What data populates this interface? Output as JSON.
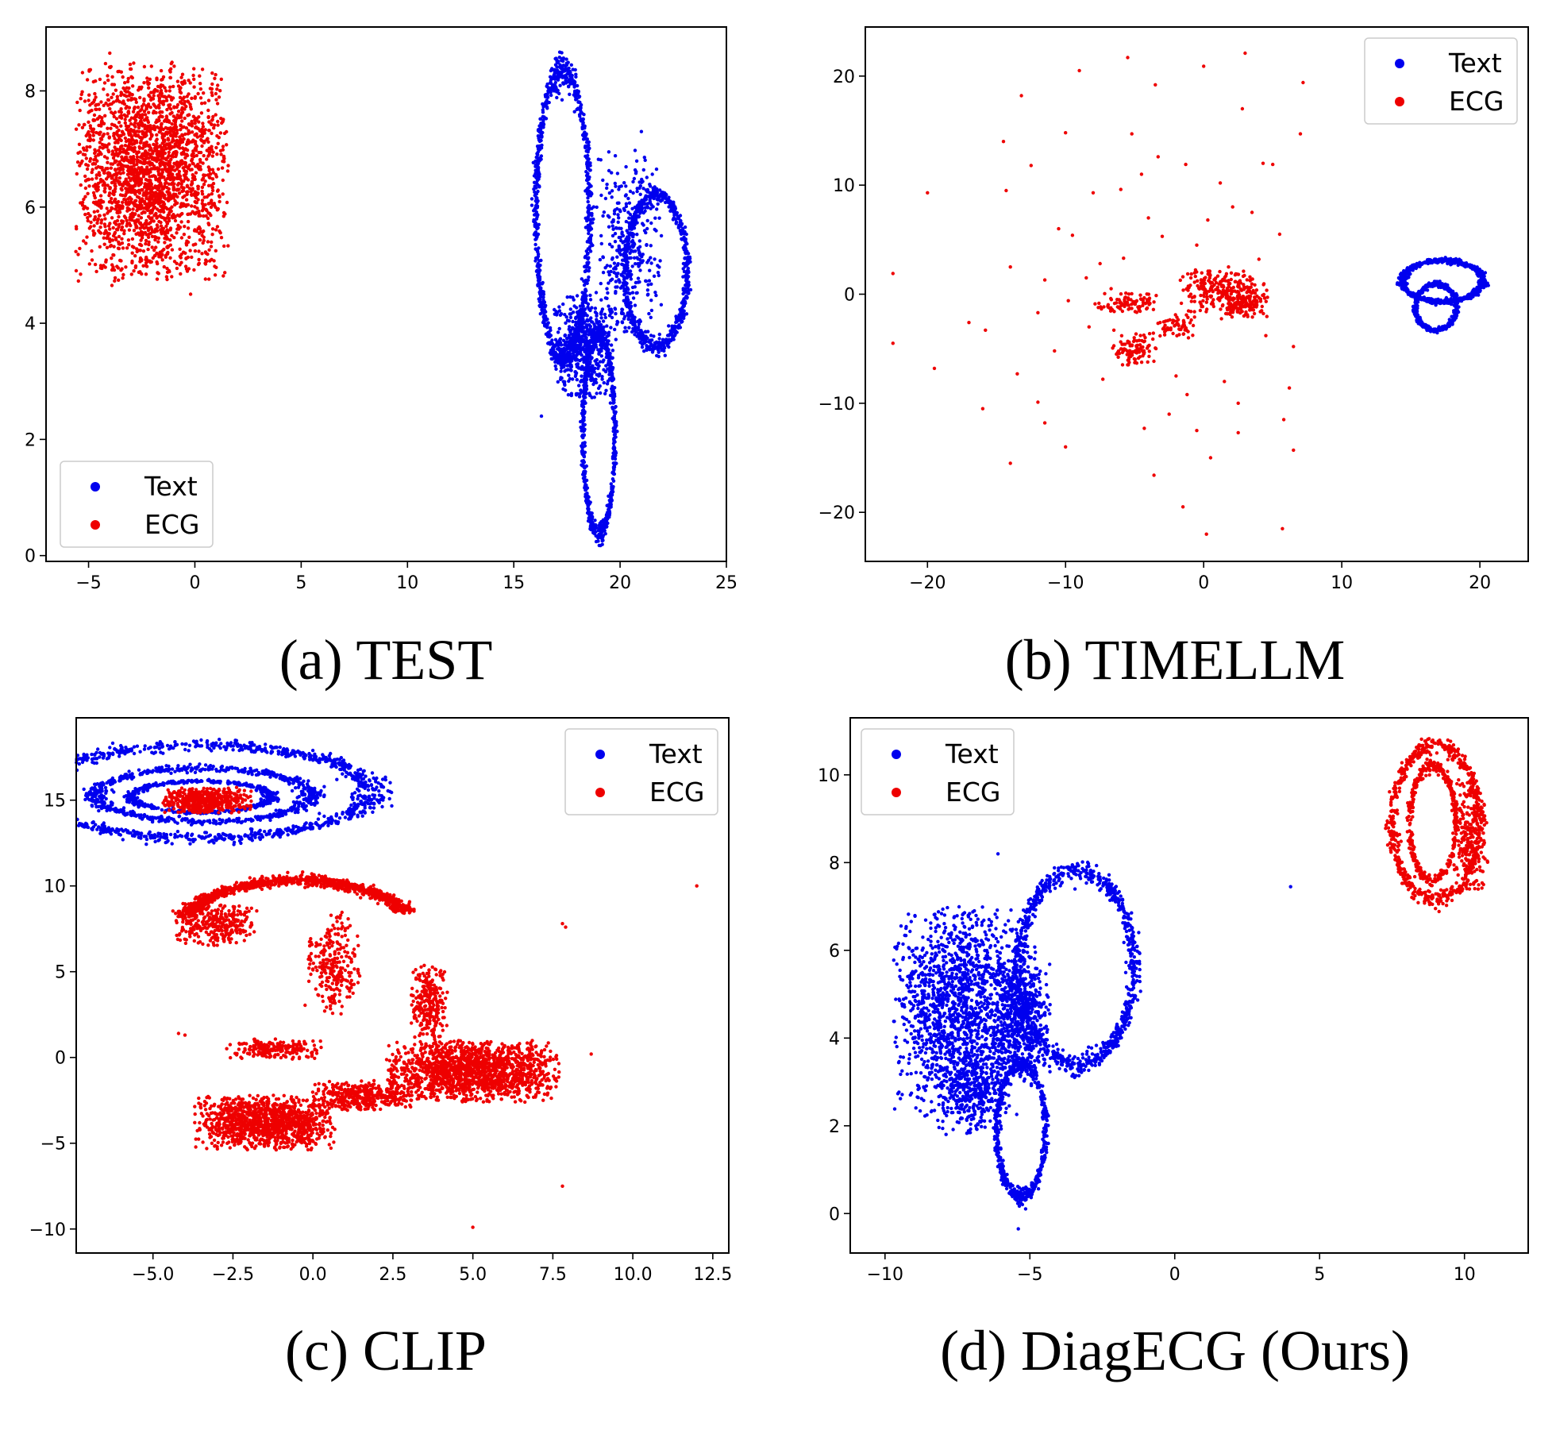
{
  "colors": {
    "text_series": "#0000ee",
    "ecg_series": "#ee0000",
    "axes": "#000000",
    "legend_border": "#cccccc"
  },
  "chart_data": [
    {
      "id": "a",
      "type": "scatter",
      "caption": "(a) TEST",
      "xlim": [
        -7,
        25
      ],
      "ylim": [
        -0.1,
        9.1
      ],
      "xticks": [
        -5,
        0,
        5,
        10,
        15,
        20,
        25
      ],
      "xtick_labels": [
        "−5",
        "0",
        "5",
        "10",
        "15",
        "20",
        "25"
      ],
      "yticks": [
        0,
        2,
        4,
        6,
        8
      ],
      "ytick_labels": [
        "0",
        "2",
        "4",
        "6",
        "8"
      ],
      "grid": false,
      "legend": {
        "position": "lower-left",
        "entries": [
          "Text",
          "ECG"
        ]
      },
      "series": [
        {
          "name": "ECG",
          "color": "#ee0000",
          "clusters": [
            {
              "shape": "blob",
              "cx": -2.0,
              "cy": 6.6,
              "rx": 3.6,
              "ry": 1.9,
              "n": 2300
            }
          ],
          "points": [
            [
              -4.0,
              8.65
            ],
            [
              -3.9,
              4.65
            ],
            [
              -0.2,
              4.5
            ]
          ]
        },
        {
          "name": "Text",
          "color": "#0000ee",
          "clusters": [
            {
              "shape": "ring",
              "cx": 17.3,
              "cy": 5.9,
              "rx": 1.25,
              "ry": 2.45,
              "n": 900
            },
            {
              "shape": "ring",
              "cx": 21.7,
              "cy": 4.9,
              "rx": 1.45,
              "ry": 1.3,
              "n": 650
            },
            {
              "shape": "ring",
              "cx": 19.0,
              "cy": 2.1,
              "rx": 0.75,
              "ry": 1.7,
              "n": 650
            },
            {
              "shape": "blob",
              "cx": 18.3,
              "cy": 3.6,
              "rx": 1.4,
              "ry": 0.9,
              "n": 500
            },
            {
              "shape": "blob",
              "cx": 20.4,
              "cy": 5.3,
              "rx": 1.6,
              "ry": 1.7,
              "n": 350
            }
          ],
          "points": [
            [
              16.3,
              2.4
            ],
            [
              19.0,
              0.35
            ],
            [
              21.0,
              7.3
            ]
          ]
        }
      ]
    },
    {
      "id": "b",
      "type": "scatter",
      "caption": "(b) TIMELLM",
      "xlim": [
        -24.5,
        23.5
      ],
      "ylim": [
        -24.5,
        24.5
      ],
      "xticks": [
        -20,
        -10,
        0,
        10,
        20
      ],
      "xtick_labels": [
        "−20",
        "−10",
        "0",
        "10",
        "20"
      ],
      "yticks": [
        -20,
        -10,
        0,
        10,
        20
      ],
      "ytick_labels": [
        "−20",
        "−10",
        "0",
        "10",
        "20"
      ],
      "grid": false,
      "legend": {
        "position": "top-right",
        "entries": [
          "Text",
          "ECG"
        ]
      },
      "series": [
        {
          "name": "Text",
          "color": "#0000ee",
          "clusters": [
            {
              "shape": "ring",
              "cx": 17.3,
              "cy": 1.2,
              "rx": 2.9,
              "ry": 1.9,
              "n": 700
            },
            {
              "shape": "ring",
              "cx": 16.8,
              "cy": -1.2,
              "rx": 1.5,
              "ry": 2.1,
              "n": 450
            }
          ],
          "points": []
        },
        {
          "name": "ECG",
          "color": "#ee0000",
          "clusters": [
            {
              "shape": "blob",
              "cx": 1.5,
              "cy": 0.3,
              "rx": 3.2,
              "ry": 2.0,
              "n": 260
            },
            {
              "shape": "blob",
              "cx": -5.0,
              "cy": -5.0,
              "rx": 1.6,
              "ry": 1.5,
              "n": 100
            },
            {
              "shape": "blob",
              "cx": -5.5,
              "cy": -0.8,
              "rx": 2.4,
              "ry": 0.9,
              "n": 90
            },
            {
              "shape": "blob",
              "cx": 3.0,
              "cy": -1.0,
              "rx": 2.0,
              "ry": 1.3,
              "n": 90
            },
            {
              "shape": "blob",
              "cx": -2.0,
              "cy": -3.0,
              "rx": 1.5,
              "ry": 1.2,
              "n": 60
            }
          ],
          "points": [
            [
              -20,
              9.3
            ],
            [
              -22.5,
              1.9
            ],
            [
              -22.5,
              -4.5
            ],
            [
              -19.5,
              -6.8
            ],
            [
              -17,
              -2.6
            ],
            [
              -16,
              -10.5
            ],
            [
              -14,
              -15.5
            ],
            [
              -13.5,
              -7.3
            ],
            [
              -12,
              -9.9
            ],
            [
              -11.5,
              -11.8
            ],
            [
              -10,
              -14
            ],
            [
              -10,
              14.8
            ],
            [
              -10.5,
              6
            ],
            [
              -9.5,
              5.4
            ],
            [
              -9,
              20.5
            ],
            [
              -8,
              9.3
            ],
            [
              -7.3,
              -7.8
            ],
            [
              -7.5,
              2.8
            ],
            [
              -5.5,
              21.7
            ],
            [
              -5.2,
              14.7
            ],
            [
              -4.5,
              11
            ],
            [
              -4.3,
              -12.3
            ],
            [
              -3.6,
              -16.6
            ],
            [
              -3.3,
              12.6
            ],
            [
              -3.5,
              19.2
            ],
            [
              -2.5,
              -11
            ],
            [
              -1.5,
              -19.5
            ],
            [
              -1.3,
              11.9
            ],
            [
              0,
              20.9
            ],
            [
              0.3,
              6.8
            ],
            [
              0.2,
              -22
            ],
            [
              0.5,
              -15
            ],
            [
              1.2,
              10.2
            ],
            [
              1.8,
              2.5
            ],
            [
              2.1,
              8
            ],
            [
              2.5,
              -10
            ],
            [
              2.8,
              17
            ],
            [
              3,
              22.1
            ],
            [
              4,
              3.2
            ],
            [
              4.5,
              -3.8
            ],
            [
              5,
              11.9
            ],
            [
              5.7,
              -21.5
            ],
            [
              6.2,
              -8.6
            ],
            [
              6.5,
              -14.3
            ],
            [
              7,
              14.7
            ],
            [
              7.2,
              19.4
            ],
            [
              -14.5,
              14
            ],
            [
              -14.3,
              9.5
            ],
            [
              -13.2,
              18.2
            ],
            [
              -12.5,
              11.8
            ],
            [
              -14,
              2.5
            ],
            [
              -15.8,
              -3.3
            ],
            [
              -6.5,
              -3.3
            ],
            [
              -6,
              9.6
            ],
            [
              1.5,
              -8
            ],
            [
              -0.5,
              -12.5
            ],
            [
              4.3,
              12
            ],
            [
              -11.5,
              1.3
            ],
            [
              -12,
              -1.7
            ],
            [
              -6.7,
              0.5
            ],
            [
              -9.8,
              -0.6
            ],
            [
              -8.3,
              -3
            ],
            [
              -3,
              5.3
            ],
            [
              -0.5,
              4.5
            ],
            [
              5.5,
              5.5
            ],
            [
              6.5,
              -4.8
            ],
            [
              -2,
              -7.5
            ],
            [
              -8.5,
              1.5
            ],
            [
              5.8,
              -11.5
            ],
            [
              -1.2,
              -9.2
            ],
            [
              -5.8,
              3.3
            ],
            [
              2.5,
              -12.7
            ],
            [
              -10.8,
              -5.2
            ],
            [
              -4,
              7
            ],
            [
              3.5,
              7.5
            ]
          ]
        }
      ]
    },
    {
      "id": "c",
      "type": "scatter",
      "caption": "(c) CLIP",
      "xlim": [
        -7.4,
        13.0
      ],
      "ylim": [
        -11.4,
        19.8
      ],
      "xticks": [
        -5.0,
        -2.5,
        0.0,
        2.5,
        5.0,
        7.5,
        10.0,
        12.5
      ],
      "xtick_labels": [
        "−5.0",
        "−2.5",
        "0.0",
        "2.5",
        "5.0",
        "7.5",
        "10.0",
        "12.5"
      ],
      "yticks": [
        -10,
        -5,
        0,
        5,
        10,
        15
      ],
      "ytick_labels": [
        "−10",
        "−5",
        "0",
        "5",
        "10",
        "15"
      ],
      "grid": false,
      "legend": {
        "position": "top-right",
        "entries": [
          "Text",
          "ECG"
        ]
      },
      "series": [
        {
          "name": "Text",
          "color": "#0000ee",
          "clusters": [
            {
              "shape": "ring",
              "cx": -3.5,
              "cy": 15.5,
              "rx": 5.3,
              "ry": 2.7,
              "n": 1100
            },
            {
              "shape": "ring",
              "cx": -3.4,
              "cy": 15.3,
              "rx": 3.4,
              "ry": 1.55,
              "n": 700
            },
            {
              "shape": "ring",
              "cx": -3.5,
              "cy": 15.2,
              "rx": 2.2,
              "ry": 0.9,
              "n": 450
            }
          ],
          "points": []
        },
        {
          "name": "ECG",
          "color": "#ee0000",
          "clusters": [
            {
              "shape": "blob",
              "cx": -3.3,
              "cy": 15.0,
              "rx": 1.4,
              "ry": 0.75,
              "n": 500
            },
            {
              "shape": "arc",
              "cx": -0.5,
              "cy": 7.5,
              "rx": 3.6,
              "ry": 2.8,
              "a0": 165,
              "a1": 20,
              "n": 1000
            },
            {
              "shape": "blob",
              "cx": -3.0,
              "cy": 7.7,
              "rx": 1.3,
              "ry": 1.2,
              "n": 300
            },
            {
              "shape": "blob",
              "cx": 0.6,
              "cy": 5.5,
              "rx": 0.9,
              "ry": 3.0,
              "n": 250
            },
            {
              "shape": "blob",
              "cx": 3.6,
              "cy": 3.2,
              "rx": 0.6,
              "ry": 2.2,
              "n": 250
            },
            {
              "shape": "blob",
              "cx": 5.0,
              "cy": -0.8,
              "rx": 2.7,
              "ry": 1.8,
              "n": 1500
            },
            {
              "shape": "blob",
              "cx": -1.5,
              "cy": -3.8,
              "rx": 2.2,
              "ry": 1.6,
              "n": 1200
            },
            {
              "shape": "blob",
              "cx": 1.5,
              "cy": -2.2,
              "rx": 1.6,
              "ry": 0.9,
              "n": 400
            },
            {
              "shape": "blob",
              "cx": -1.2,
              "cy": 0.5,
              "rx": 1.5,
              "ry": 0.6,
              "n": 200
            }
          ],
          "points": [
            [
              12.0,
              10.0
            ],
            [
              7.8,
              7.8
            ],
            [
              7.9,
              7.6
            ],
            [
              8.7,
              0.2
            ],
            [
              7.8,
              -7.5
            ],
            [
              5.0,
              -9.9
            ],
            [
              -4.2,
              1.4
            ],
            [
              -4.0,
              1.3
            ]
          ]
        }
      ]
    },
    {
      "id": "d",
      "type": "scatter",
      "caption": "(d) DiagECG (Ours)",
      "xlim": [
        -11.2,
        12.2
      ],
      "ylim": [
        -0.9,
        11.3
      ],
      "xticks": [
        -10,
        -5,
        0,
        5,
        10
      ],
      "xtick_labels": [
        "−10",
        "−5",
        "0",
        "5",
        "10"
      ],
      "yticks": [
        0,
        2,
        4,
        6,
        8,
        10
      ],
      "ytick_labels": [
        "0",
        "2",
        "4",
        "6",
        "8",
        "10"
      ],
      "grid": false,
      "legend": {
        "position": "top-left",
        "entries": [
          "Text",
          "ECG"
        ]
      },
      "series": [
        {
          "name": "Text",
          "color": "#0000ee",
          "clusters": [
            {
              "shape": "blob",
              "cx": -7.5,
              "cy": 4.6,
              "rx": 2.2,
              "ry": 2.4,
              "n": 1500
            },
            {
              "shape": "ring",
              "cx": -3.4,
              "cy": 5.6,
              "rx": 2.0,
              "ry": 2.2,
              "n": 900
            },
            {
              "shape": "ring",
              "cx": -5.3,
              "cy": 1.9,
              "rx": 0.85,
              "ry": 1.5,
              "n": 600
            },
            {
              "shape": "blob",
              "cx": -5.3,
              "cy": 4.5,
              "rx": 1.0,
              "ry": 1.6,
              "n": 600
            },
            {
              "shape": "blob",
              "cx": -7.0,
              "cy": 2.7,
              "rx": 1.2,
              "ry": 0.9,
              "n": 300
            }
          ],
          "points": [
            [
              4.0,
              7.45
            ],
            [
              -5.4,
              -0.35
            ],
            [
              -6.1,
              8.2
            ]
          ]
        },
        {
          "name": "ECG",
          "color": "#ee0000",
          "clusters": [
            {
              "shape": "ring",
              "cx": 9.0,
              "cy": 8.9,
              "rx": 1.5,
              "ry": 1.75,
              "n": 600
            },
            {
              "shape": "ring",
              "cx": 8.9,
              "cy": 8.9,
              "rx": 0.8,
              "ry": 1.3,
              "n": 400
            },
            {
              "shape": "blob",
              "cx": 10.2,
              "cy": 8.6,
              "rx": 0.6,
              "ry": 1.3,
              "n": 250
            }
          ],
          "points": []
        }
      ]
    }
  ]
}
